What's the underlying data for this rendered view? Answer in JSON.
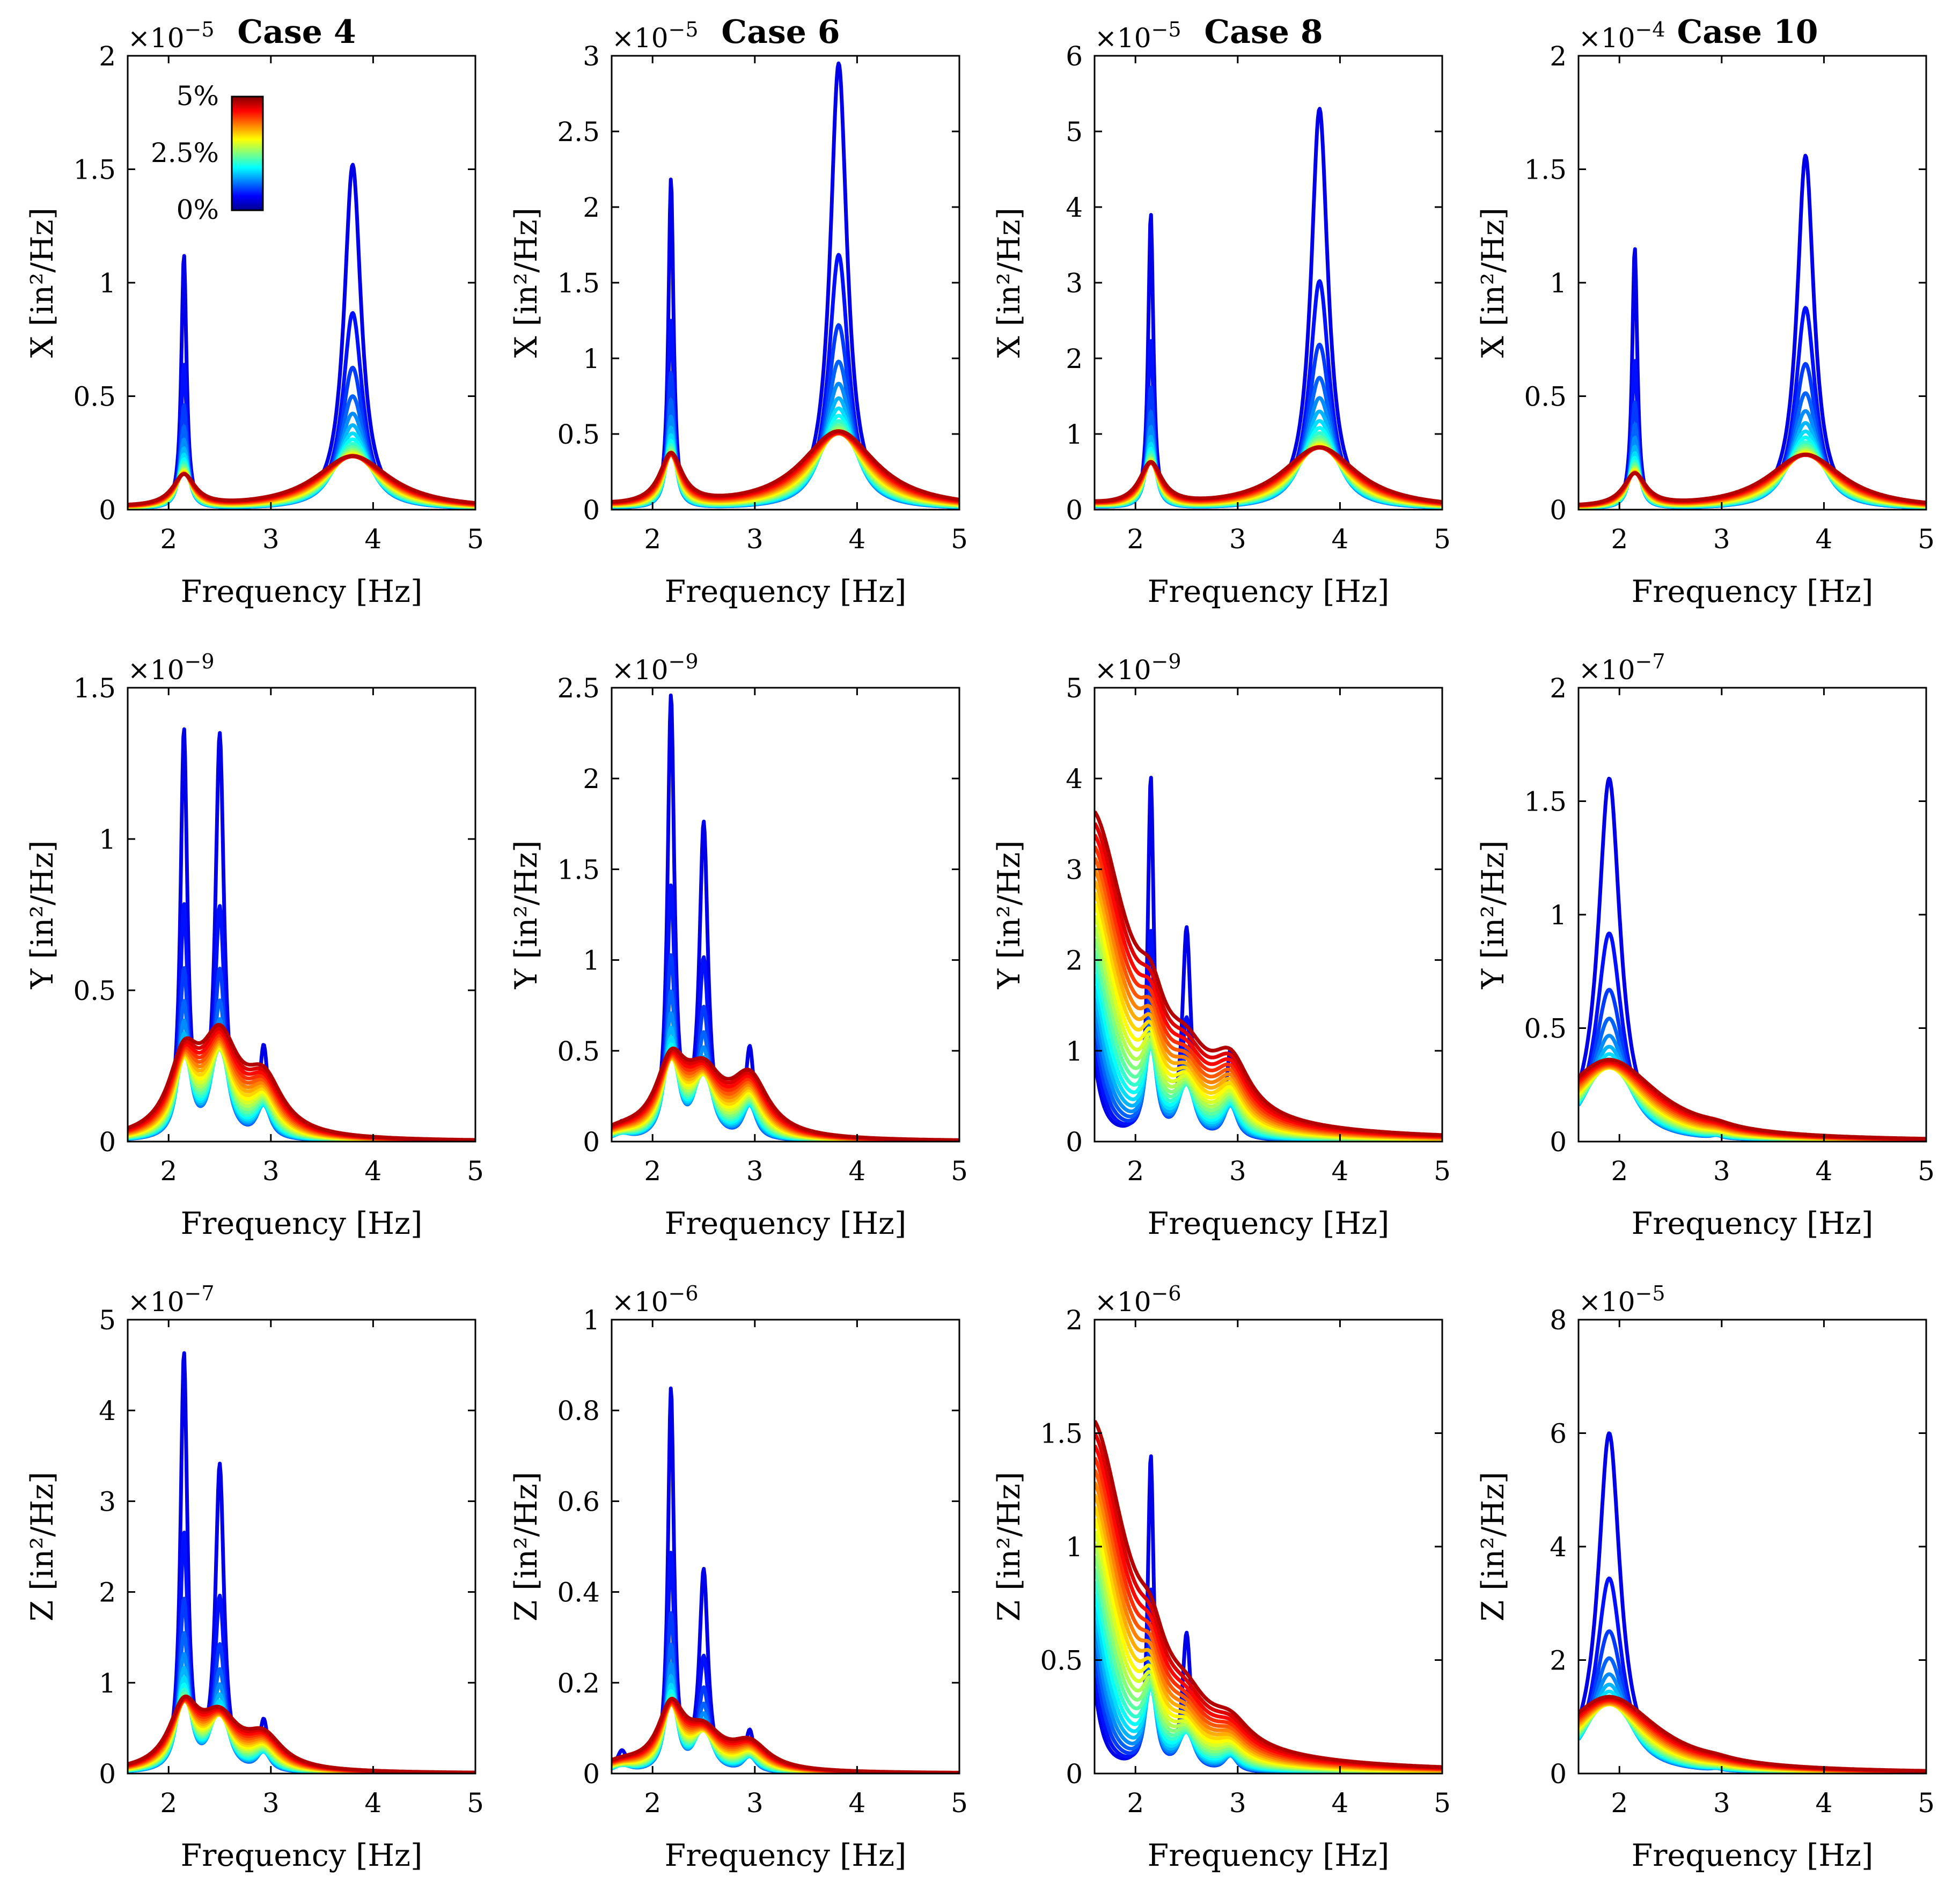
{
  "colorbar": {
    "labels": [
      "5%",
      "2.5%",
      "0%"
    ],
    "range": [
      0,
      5
    ]
  },
  "chart_data": [
    {
      "type": "line",
      "row": 0,
      "col": 0,
      "title": "Case 4",
      "xlabel": "Frequency [Hz]",
      "ylabel": "X [in²/Hz]",
      "exponent": "×10",
      "exponent_power": "−5",
      "xlim": [
        1.6,
        5
      ],
      "ylim": [
        0,
        2
      ],
      "xticks": [
        "2",
        "3",
        "4",
        "5"
      ],
      "yticks": [
        "0",
        "0.5",
        "1",
        "1.5",
        "2"
      ],
      "peaks": [
        {
          "f": 2.15,
          "base": 1.12,
          "w": 0.03,
          "tail": 0.05
        },
        {
          "f": 3.8,
          "base": 1.52,
          "w": 0.1,
          "tail": 0.08
        }
      ],
      "bg_low": 0.06
    },
    {
      "type": "line",
      "row": 0,
      "col": 1,
      "title": "Case 6",
      "xlabel": "Frequency [Hz]",
      "ylabel": "X [in²/Hz]",
      "exponent": "×10",
      "exponent_power": "−5",
      "xlim": [
        1.6,
        5
      ],
      "ylim": [
        0,
        3
      ],
      "xticks": [
        "2",
        "3",
        "4",
        "5"
      ],
      "yticks": [
        "0",
        "0.5",
        "1",
        "1.5",
        "2",
        "2.5",
        "3"
      ],
      "peaks": [
        {
          "f": 2.18,
          "base": 2.18,
          "w": 0.03,
          "tail": 0.08
        },
        {
          "f": 3.82,
          "base": 2.95,
          "w": 0.1,
          "tail": 0.1
        }
      ],
      "bg_low": 0.12
    },
    {
      "type": "line",
      "row": 0,
      "col": 2,
      "title": "Case 8",
      "xlabel": "Frequency [Hz]",
      "ylabel": "X [in²/Hz]",
      "exponent": "×10",
      "exponent_power": "−5",
      "xlim": [
        1.6,
        5
      ],
      "ylim": [
        0,
        6
      ],
      "xticks": [
        "2",
        "3",
        "4",
        "5"
      ],
      "yticks": [
        "0",
        "1",
        "2",
        "3",
        "4",
        "5",
        "6"
      ],
      "peaks": [
        {
          "f": 2.15,
          "base": 3.9,
          "w": 0.03,
          "tail": 0.07
        },
        {
          "f": 3.8,
          "base": 5.3,
          "w": 0.1,
          "tail": 0.08
        }
      ],
      "bg_low": 0.2
    },
    {
      "type": "line",
      "row": 0,
      "col": 3,
      "title": "Case 10",
      "xlabel": "Frequency [Hz]",
      "ylabel": "X [in²/Hz]",
      "exponent": "×10",
      "exponent_power": "−4",
      "xlim": [
        1.6,
        5
      ],
      "ylim": [
        0,
        2
      ],
      "xticks": [
        "2",
        "3",
        "4",
        "5"
      ],
      "yticks": [
        "0",
        "0.5",
        "1",
        "1.5",
        "2"
      ],
      "peaks": [
        {
          "f": 2.15,
          "base": 1.15,
          "w": 0.03,
          "tail": 0.05
        },
        {
          "f": 3.82,
          "base": 1.56,
          "w": 0.1,
          "tail": 0.08
        }
      ],
      "bg_low": 0.06
    },
    {
      "type": "line",
      "row": 1,
      "col": 0,
      "title": "",
      "xlabel": "Frequency [Hz]",
      "ylabel": "Y [in²/Hz]",
      "exponent": "×10",
      "exponent_power": "−9",
      "xlim": [
        1.6,
        5
      ],
      "ylim": [
        0,
        1.5
      ],
      "xticks": [
        "2",
        "3",
        "4",
        "5"
      ],
      "yticks": [
        "0",
        "0.5",
        "1",
        "1.5"
      ],
      "peaks": [
        {
          "f": 2.15,
          "base": 1.34,
          "w": 0.04,
          "tail": 0.1
        },
        {
          "f": 2.5,
          "base": 1.33,
          "w": 0.05,
          "tail": 0.15
        },
        {
          "f": 2.93,
          "base": 0.3,
          "w": 0.05,
          "tail": 0.5
        }
      ],
      "bg_low": 0.0
    },
    {
      "type": "line",
      "row": 1,
      "col": 1,
      "title": "",
      "xlabel": "Frequency [Hz]",
      "ylabel": "Y [in²/Hz]",
      "exponent": "×10",
      "exponent_power": "−9",
      "xlim": [
        1.6,
        5
      ],
      "ylim": [
        0,
        2.5
      ],
      "xticks": [
        "2",
        "3",
        "4",
        "5"
      ],
      "yticks": [
        "0",
        "0.5",
        "1",
        "1.5",
        "2",
        "2.5"
      ],
      "peaks": [
        {
          "f": 2.18,
          "base": 2.42,
          "w": 0.04,
          "tail": 0.08
        },
        {
          "f": 2.5,
          "base": 1.72,
          "w": 0.05,
          "tail": 0.1
        },
        {
          "f": 2.95,
          "base": 0.5,
          "w": 0.05,
          "tail": 0.55
        },
        {
          "f": 1.7,
          "base": 0.09,
          "w": 0.06,
          "tail": 0.3
        }
      ],
      "bg_low": 0.02
    },
    {
      "type": "line",
      "row": 1,
      "col": 2,
      "title": "",
      "xlabel": "Frequency [Hz]",
      "ylabel": "Y [in²/Hz]",
      "exponent": "×10",
      "exponent_power": "−9",
      "xlim": [
        1.6,
        5
      ],
      "ylim": [
        0,
        5
      ],
      "xticks": [
        "2",
        "3",
        "4",
        "5"
      ],
      "yticks": [
        "0",
        "1",
        "2",
        "3",
        "4",
        "5"
      ],
      "peaks": [
        {
          "f": 2.15,
          "base": 3.95,
          "w": 0.035,
          "tail": 0.06
        },
        {
          "f": 2.5,
          "base": 2.3,
          "w": 0.05,
          "tail": 0.1
        },
        {
          "f": 2.93,
          "base": 0.98,
          "w": 0.05,
          "tail": 0.5
        },
        {
          "f": 1.55,
          "base": 0.0,
          "w": 0.1,
          "tail": 3.6
        }
      ],
      "bg_low": 0.0
    },
    {
      "type": "line",
      "row": 1,
      "col": 3,
      "title": "",
      "xlabel": "Frequency [Hz]",
      "ylabel": "Y [in²/Hz]",
      "exponent": "×10",
      "exponent_power": "−7",
      "xlim": [
        1.6,
        5
      ],
      "ylim": [
        0,
        2
      ],
      "xticks": [
        "2",
        "3",
        "4",
        "5"
      ],
      "yticks": [
        "0",
        "0.5",
        "1",
        "1.5",
        "2"
      ],
      "peaks": [
        {
          "f": 1.9,
          "base": 1.6,
          "w": 0.13,
          "tail": 0.15
        },
        {
          "f": 2.95,
          "base": 0.03,
          "w": 0.04,
          "tail": 0.3
        }
      ],
      "bg_low": 0.0
    },
    {
      "type": "line",
      "row": 2,
      "col": 0,
      "title": "",
      "xlabel": "Frequency [Hz]",
      "ylabel": "Z [in²/Hz]",
      "exponent": "×10",
      "exponent_power": "−7",
      "xlim": [
        1.6,
        5
      ],
      "ylim": [
        0,
        5
      ],
      "xticks": [
        "2",
        "3",
        "4",
        "5"
      ],
      "yticks": [
        "0",
        "1",
        "2",
        "3",
        "4",
        "5"
      ],
      "peaks": [
        {
          "f": 2.15,
          "base": 4.58,
          "w": 0.04,
          "tail": 0.07
        },
        {
          "f": 2.5,
          "base": 3.35,
          "w": 0.05,
          "tail": 0.08
        },
        {
          "f": 2.93,
          "base": 0.55,
          "w": 0.05,
          "tail": 0.55
        }
      ],
      "bg_low": 0.0
    },
    {
      "type": "line",
      "row": 2,
      "col": 1,
      "title": "",
      "xlabel": "Frequency [Hz]",
      "ylabel": "Z [in²/Hz]",
      "exponent": "×10",
      "exponent_power": "−6",
      "xlim": [
        1.6,
        5
      ],
      "ylim": [
        0,
        1
      ],
      "xticks": [
        "2",
        "3",
        "4",
        "5"
      ],
      "yticks": [
        "0",
        "0.2",
        "0.4",
        "0.6",
        "0.8",
        "1"
      ],
      "peaks": [
        {
          "f": 2.18,
          "base": 0.84,
          "w": 0.035,
          "tail": 0.08
        },
        {
          "f": 2.5,
          "base": 0.44,
          "w": 0.05,
          "tail": 0.1
        },
        {
          "f": 2.95,
          "base": 0.09,
          "w": 0.05,
          "tail": 0.55
        },
        {
          "f": 1.7,
          "base": 0.045,
          "w": 0.06,
          "tail": 0.3
        }
      ],
      "bg_low": 0.01
    },
    {
      "type": "line",
      "row": 2,
      "col": 2,
      "title": "",
      "xlabel": "Frequency [Hz]",
      "ylabel": "Z [in²/Hz]",
      "exponent": "×10",
      "exponent_power": "−6",
      "xlim": [
        1.6,
        5
      ],
      "ylim": [
        0,
        2
      ],
      "xticks": [
        "2",
        "3",
        "4",
        "5"
      ],
      "yticks": [
        "0",
        "0.5",
        "1",
        "1.5",
        "2"
      ],
      "peaks": [
        {
          "f": 2.15,
          "base": 1.38,
          "w": 0.035,
          "tail": 0.06
        },
        {
          "f": 2.5,
          "base": 0.6,
          "w": 0.05,
          "tail": 0.1
        },
        {
          "f": 2.93,
          "base": 0.17,
          "w": 0.05,
          "tail": 0.5
        },
        {
          "f": 1.55,
          "base": 0.0,
          "w": 0.1,
          "tail": 1.55
        }
      ],
      "bg_low": 0.0
    },
    {
      "type": "line",
      "row": 2,
      "col": 3,
      "title": "",
      "xlabel": "Frequency [Hz]",
      "ylabel": "Z [in²/Hz]",
      "exponent": "×10",
      "exponent_power": "−5",
      "xlim": [
        1.6,
        5
      ],
      "ylim": [
        0,
        8
      ],
      "xticks": [
        "2",
        "3",
        "4",
        "5"
      ],
      "yticks": [
        "0",
        "2",
        "4",
        "6",
        "8"
      ],
      "peaks": [
        {
          "f": 1.9,
          "base": 6.0,
          "w": 0.13,
          "tail": 0.15
        },
        {
          "f": 2.95,
          "base": 0.08,
          "w": 0.04,
          "tail": 0.3
        }
      ],
      "bg_low": 0.0
    }
  ]
}
